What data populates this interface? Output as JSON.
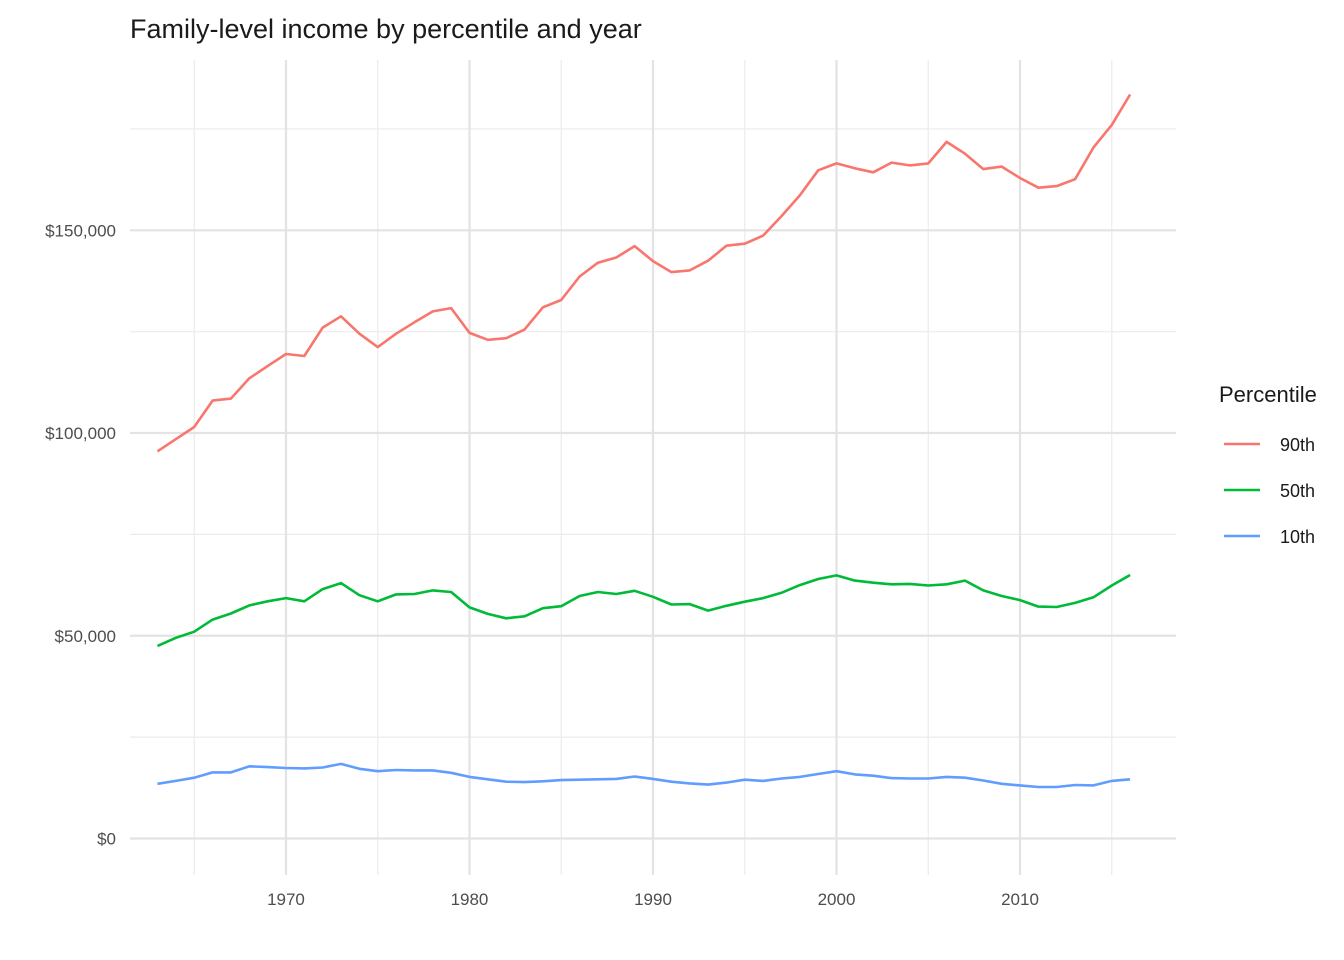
{
  "chart_data": {
    "type": "line",
    "title": "Family-level income by percentile and year",
    "xlabel": "",
    "ylabel": "",
    "xlim": [
      1961.5,
      2018.5
    ],
    "ylim": [
      -9000,
      192000
    ],
    "x_ticks": [
      1970,
      1980,
      1990,
      2000,
      2010
    ],
    "x_tick_labels": [
      "1970",
      "1980",
      "1990",
      "2000",
      "2010"
    ],
    "x_minor_ticks": [
      1965,
      1975,
      1985,
      1995,
      2005,
      2015
    ],
    "y_ticks": [
      0,
      50000,
      100000,
      150000
    ],
    "y_tick_labels": [
      "$0",
      "$50,000",
      "$100,000",
      "$150,000"
    ],
    "y_minor_ticks": [
      25000,
      75000,
      125000,
      175000
    ],
    "grid": true,
    "legend": {
      "title": "Percentile",
      "position": "right"
    },
    "x": [
      1963,
      1964,
      1965,
      1966,
      1967,
      1968,
      1969,
      1970,
      1971,
      1972,
      1973,
      1974,
      1975,
      1976,
      1977,
      1978,
      1979,
      1980,
      1981,
      1982,
      1983,
      1984,
      1985,
      1986,
      1987,
      1988,
      1989,
      1990,
      1991,
      1992,
      1993,
      1994,
      1995,
      1996,
      1997,
      1998,
      1999,
      2000,
      2001,
      2002,
      2003,
      2004,
      2005,
      2006,
      2007,
      2008,
      2009,
      2010,
      2011,
      2012,
      2013,
      2014,
      2015,
      2016
    ],
    "series": [
      {
        "name": "90th",
        "color": "#F8766D",
        "values": [
          95500,
          98500,
          101500,
          108000,
          108500,
          113500,
          116500,
          119500,
          119000,
          126000,
          128800,
          124500,
          121200,
          124500,
          127300,
          130000,
          130800,
          124700,
          123000,
          123400,
          125500,
          131000,
          132800,
          138600,
          142000,
          143300,
          146100,
          142400,
          139700,
          140100,
          142500,
          146200,
          146700,
          148700,
          153500,
          158600,
          164800,
          166500,
          165300,
          164300,
          166700,
          166000,
          166500,
          171800,
          168900,
          165100,
          165700,
          162900,
          160500,
          160900,
          162600,
          170400,
          176000,
          183500
        ]
      },
      {
        "name": "50th",
        "color": "#00BA38",
        "values": [
          47500,
          49500,
          51000,
          54000,
          55500,
          57500,
          58500,
          59300,
          58500,
          61500,
          63000,
          60000,
          58500,
          60200,
          60300,
          61200,
          60800,
          57000,
          55400,
          54300,
          54800,
          56800,
          57300,
          59800,
          60800,
          60300,
          61100,
          59600,
          57700,
          57800,
          56200,
          57400,
          58400,
          59300,
          60600,
          62500,
          64000,
          64900,
          63600,
          63100,
          62700,
          62800,
          62400,
          62700,
          63600,
          61200,
          59800,
          58800,
          57200,
          57100,
          58100,
          59500,
          62400,
          65000
        ]
      },
      {
        "name": "10th",
        "color": "#619CFF",
        "values": [
          13500,
          14200,
          15000,
          16300,
          16300,
          17800,
          17600,
          17400,
          17300,
          17500,
          18400,
          17200,
          16600,
          16900,
          16800,
          16800,
          16200,
          15200,
          14600,
          14000,
          13900,
          14100,
          14400,
          14500,
          14600,
          14700,
          15300,
          14700,
          14000,
          13600,
          13300,
          13800,
          14500,
          14200,
          14800,
          15200,
          15900,
          16600,
          15800,
          15500,
          14900,
          14800,
          14800,
          15200,
          15000,
          14300,
          13500,
          13100,
          12700,
          12700,
          13200,
          13100,
          14200,
          14600
        ]
      }
    ]
  }
}
